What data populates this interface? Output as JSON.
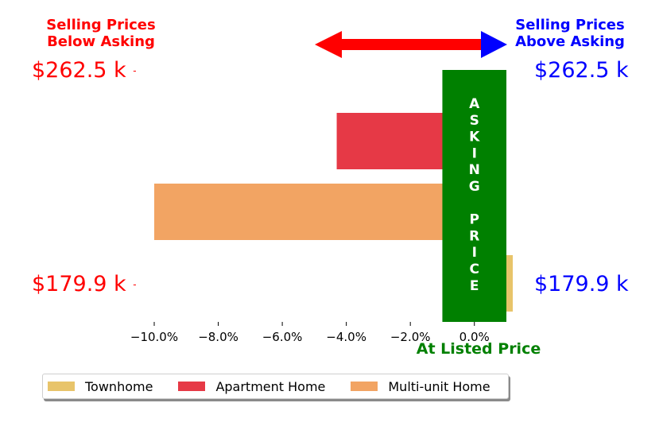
{
  "headers": {
    "below": {
      "line1": "Selling Prices",
      "line2": "Below Asking",
      "color": "#ff0000"
    },
    "above": {
      "line1": "Selling Prices",
      "line2": "Above Asking",
      "color": "#0000ff"
    }
  },
  "prices": {
    "top_left": "$262.5 k",
    "top_right": "$262.5 k",
    "bottom_left": "$179.9 k",
    "bottom_right": "$179.9 k",
    "left_color": "#ff0000",
    "right_color": "#0000ff",
    "left_tick": "-"
  },
  "asking_band": {
    "text": [
      "A",
      "S",
      "K",
      "I",
      "N",
      "G",
      "",
      "P",
      "R",
      "I",
      "C",
      "E"
    ],
    "color": "#008000"
  },
  "x_caption": {
    "text": "At Listed Price",
    "color": "#008000"
  },
  "arrow": {
    "left_color": "#ff0000",
    "right_color": "#0000ff"
  },
  "chart_data": {
    "type": "bar",
    "orientation": "horizontal",
    "categories": [
      "Townhome",
      "Multi-unit Home",
      "Apartment Home"
    ],
    "series": [
      {
        "name": "Townhome",
        "color": "#e8c46a",
        "value": 1.2
      },
      {
        "name": "Multi-unit Home",
        "color": "#f2a463",
        "value": -10.0
      },
      {
        "name": "Apartment Home",
        "color": "#e63946",
        "value": -4.3
      }
    ],
    "xlim": [
      -10.0,
      1.0
    ],
    "xticks": [
      -10.0,
      -8.0,
      -6.0,
      -4.0,
      -2.0,
      0.0
    ],
    "xtick_labels": [
      "−10.0%",
      "−8.0%",
      "−6.0%",
      "−4.0%",
      "−2.0%",
      "0.0%"
    ],
    "asking_band_range": [
      -1.0,
      1.0
    ],
    "grid": false
  },
  "legend": [
    {
      "label": "Townhome",
      "color": "#e8c46a"
    },
    {
      "label": "Apartment Home",
      "color": "#e63946"
    },
    {
      "label": "Multi-unit Home",
      "color": "#f2a463"
    }
  ]
}
